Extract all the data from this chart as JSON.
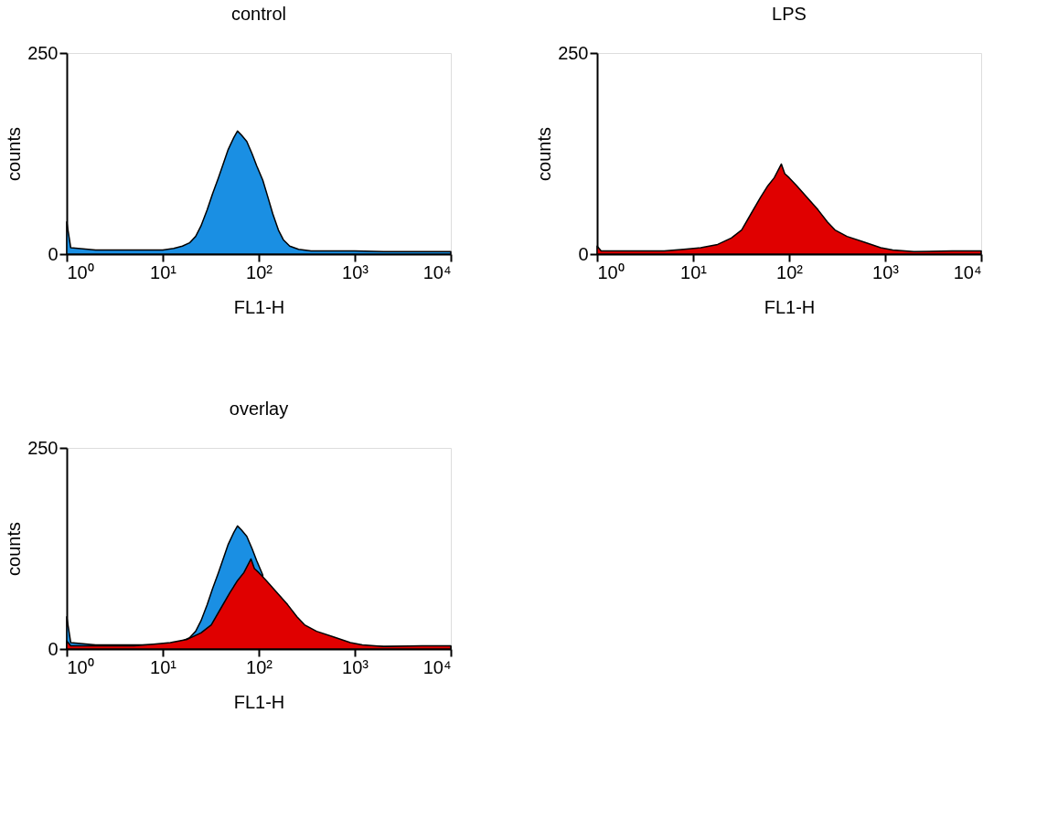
{
  "chart_data": [
    {
      "type": "area",
      "title": "control",
      "xlabel": "FL1-H",
      "ylabel": "counts",
      "log": "x",
      "grid": false,
      "legend": false,
      "xlim": [
        1,
        10000
      ],
      "ylim": [
        0,
        250
      ],
      "xticks": [
        {
          "value": 1,
          "label": "10⁰"
        },
        {
          "value": 10,
          "label": "10¹"
        },
        {
          "value": 100,
          "label": "10²"
        },
        {
          "value": 1000,
          "label": "10³"
        },
        {
          "value": 10000,
          "label": "10⁴"
        }
      ],
      "yticks": [
        0,
        250
      ],
      "series": [
        {
          "color": "#1a8fe3",
          "x": [
            1,
            1.1,
            2,
            5,
            10,
            13,
            16,
            19,
            22,
            25,
            29,
            33,
            38,
            42,
            48,
            55,
            60,
            66,
            75,
            85,
            95,
            110,
            125,
            140,
            160,
            180,
            210,
            260,
            350,
            1000,
            2000,
            10000
          ],
          "values": [
            40,
            8,
            5,
            5,
            5,
            7,
            10,
            14,
            22,
            35,
            55,
            75,
            95,
            110,
            130,
            145,
            153,
            148,
            140,
            125,
            110,
            92,
            70,
            50,
            30,
            18,
            10,
            6,
            4,
            4,
            3,
            3
          ]
        }
      ]
    },
    {
      "type": "area",
      "title": "LPS",
      "xlabel": "FL1-H",
      "ylabel": "counts",
      "log": "x",
      "grid": false,
      "legend": false,
      "xlim": [
        1,
        10000
      ],
      "ylim": [
        0,
        250
      ],
      "xticks": [
        {
          "value": 1,
          "label": "10⁰"
        },
        {
          "value": 10,
          "label": "10¹"
        },
        {
          "value": 100,
          "label": "10²"
        },
        {
          "value": 1000,
          "label": "10³"
        },
        {
          "value": 10000,
          "label": "10⁴"
        }
      ],
      "yticks": [
        0,
        250
      ],
      "series": [
        {
          "color": "#e00000",
          "x": [
            1,
            1.1,
            5,
            8,
            12,
            18,
            25,
            32,
            40,
            50,
            60,
            70,
            83,
            90,
            100,
            120,
            150,
            200,
            250,
            300,
            400,
            600,
            900,
            1200,
            2000,
            5000,
            10000
          ],
          "values": [
            10,
            4,
            4,
            6,
            8,
            12,
            20,
            30,
            50,
            70,
            85,
            95,
            112,
            100,
            95,
            85,
            72,
            55,
            40,
            30,
            22,
            15,
            8,
            5,
            3,
            4,
            4
          ]
        }
      ]
    },
    {
      "type": "area",
      "title": "overlay",
      "xlabel": "FL1-H",
      "ylabel": "counts",
      "log": "x",
      "grid": false,
      "legend": false,
      "xlim": [
        1,
        10000
      ],
      "ylim": [
        0,
        250
      ],
      "xticks": [
        {
          "value": 1,
          "label": "10⁰"
        },
        {
          "value": 10,
          "label": "10¹"
        },
        {
          "value": 100,
          "label": "10²"
        },
        {
          "value": 1000,
          "label": "10³"
        },
        {
          "value": 10000,
          "label": "10⁴"
        }
      ],
      "yticks": [
        0,
        250
      ],
      "series": [
        {
          "color": "#1a8fe3",
          "x": [
            1,
            1.1,
            2,
            5,
            10,
            13,
            16,
            19,
            22,
            25,
            29,
            33,
            38,
            42,
            48,
            55,
            60,
            66,
            75,
            85,
            95,
            110,
            125,
            140,
            160,
            180,
            210,
            260,
            350,
            1000,
            2000,
            10000
          ],
          "values": [
            40,
            8,
            5,
            5,
            5,
            7,
            10,
            14,
            22,
            35,
            55,
            75,
            95,
            110,
            130,
            145,
            153,
            148,
            140,
            125,
            110,
            92,
            null,
            null,
            null,
            null,
            null,
            null,
            null,
            4,
            3,
            3
          ]
        },
        {
          "color": "#e00000",
          "x": [
            1,
            1.1,
            5,
            8,
            12,
            18,
            25,
            32,
            40,
            50,
            60,
            70,
            83,
            90,
            100,
            120,
            150,
            200,
            250,
            300,
            400,
            600,
            900,
            1200,
            2000,
            5000,
            10000
          ],
          "values": [
            10,
            4,
            4,
            6,
            8,
            12,
            20,
            30,
            50,
            70,
            85,
            95,
            112,
            100,
            95,
            85,
            72,
            55,
            40,
            30,
            22,
            15,
            8,
            5,
            3,
            4,
            4
          ]
        }
      ]
    }
  ]
}
